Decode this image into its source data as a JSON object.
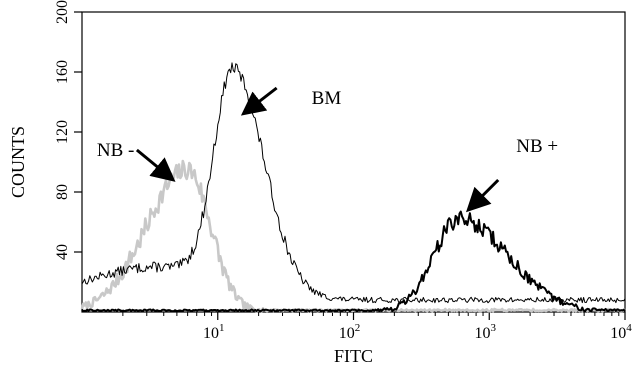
{
  "chart_data": {
    "type": "line",
    "xscale": "log",
    "xlim": [
      1,
      10000
    ],
    "ylim": [
      0,
      200
    ],
    "xlabel": "FITC",
    "ylabel": "COUNTS",
    "xticks": [
      {
        "value": 10,
        "base": "10",
        "exp": "1"
      },
      {
        "value": 100,
        "base": "10",
        "exp": "2"
      },
      {
        "value": 1000,
        "base": "10",
        "exp": "3"
      },
      {
        "value": 10000,
        "base": "10",
        "exp": "4"
      }
    ],
    "yticks": [
      40,
      80,
      120,
      160,
      200
    ],
    "grid": false,
    "series": [
      {
        "name": "NB -",
        "color": "#c8c8c8",
        "peaks": [
          {
            "x": 6,
            "height": 95,
            "sigma_left": 0.3,
            "sigma_right": 0.17
          }
        ],
        "noise": 5,
        "seed": 7
      },
      {
        "name": "BM",
        "color": "#000000",
        "peaks": [
          {
            "x": 13,
            "height": 145,
            "sigma_left": 0.14,
            "sigma_right": 0.23
          },
          {
            "x": 3.5,
            "height": 22,
            "sigma_left": 0.5,
            "sigma_right": 0.45
          }
        ],
        "baseline": 8,
        "noise": 3,
        "seed": 13
      },
      {
        "name": "NB +",
        "color": "#000000",
        "peaks": [
          {
            "x": 600,
            "height": 62,
            "sigma_left": 0.19,
            "sigma_right": 0.36
          }
        ],
        "noise": 4,
        "seed": 29
      }
    ],
    "annotations": [
      {
        "text": "BM",
        "target": "BM"
      },
      {
        "text": "NB -",
        "target": "NB -"
      },
      {
        "text": "NB +",
        "target": "NB +"
      }
    ]
  }
}
